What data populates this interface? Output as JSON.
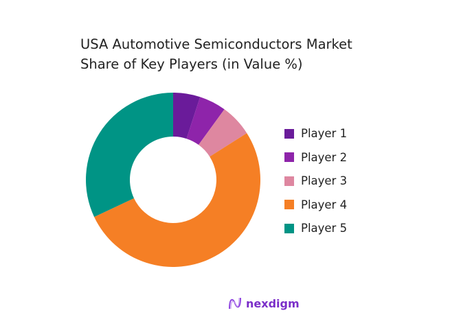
{
  "chart_data": {
    "type": "pie",
    "title": "USA Automotive Semiconductors Market Share of Key Players (in Value %)",
    "categories": [
      "Player 1",
      "Player 2",
      "Player 3",
      "Player 4",
      "Player 5"
    ],
    "values": [
      5,
      5,
      6,
      52,
      32
    ],
    "colors": [
      "#6a1b9a",
      "#8e24aa",
      "#de87a0",
      "#f57f25",
      "#009485"
    ],
    "donut": true,
    "legend": "right"
  },
  "brand": {
    "name": "nexdigm"
  }
}
